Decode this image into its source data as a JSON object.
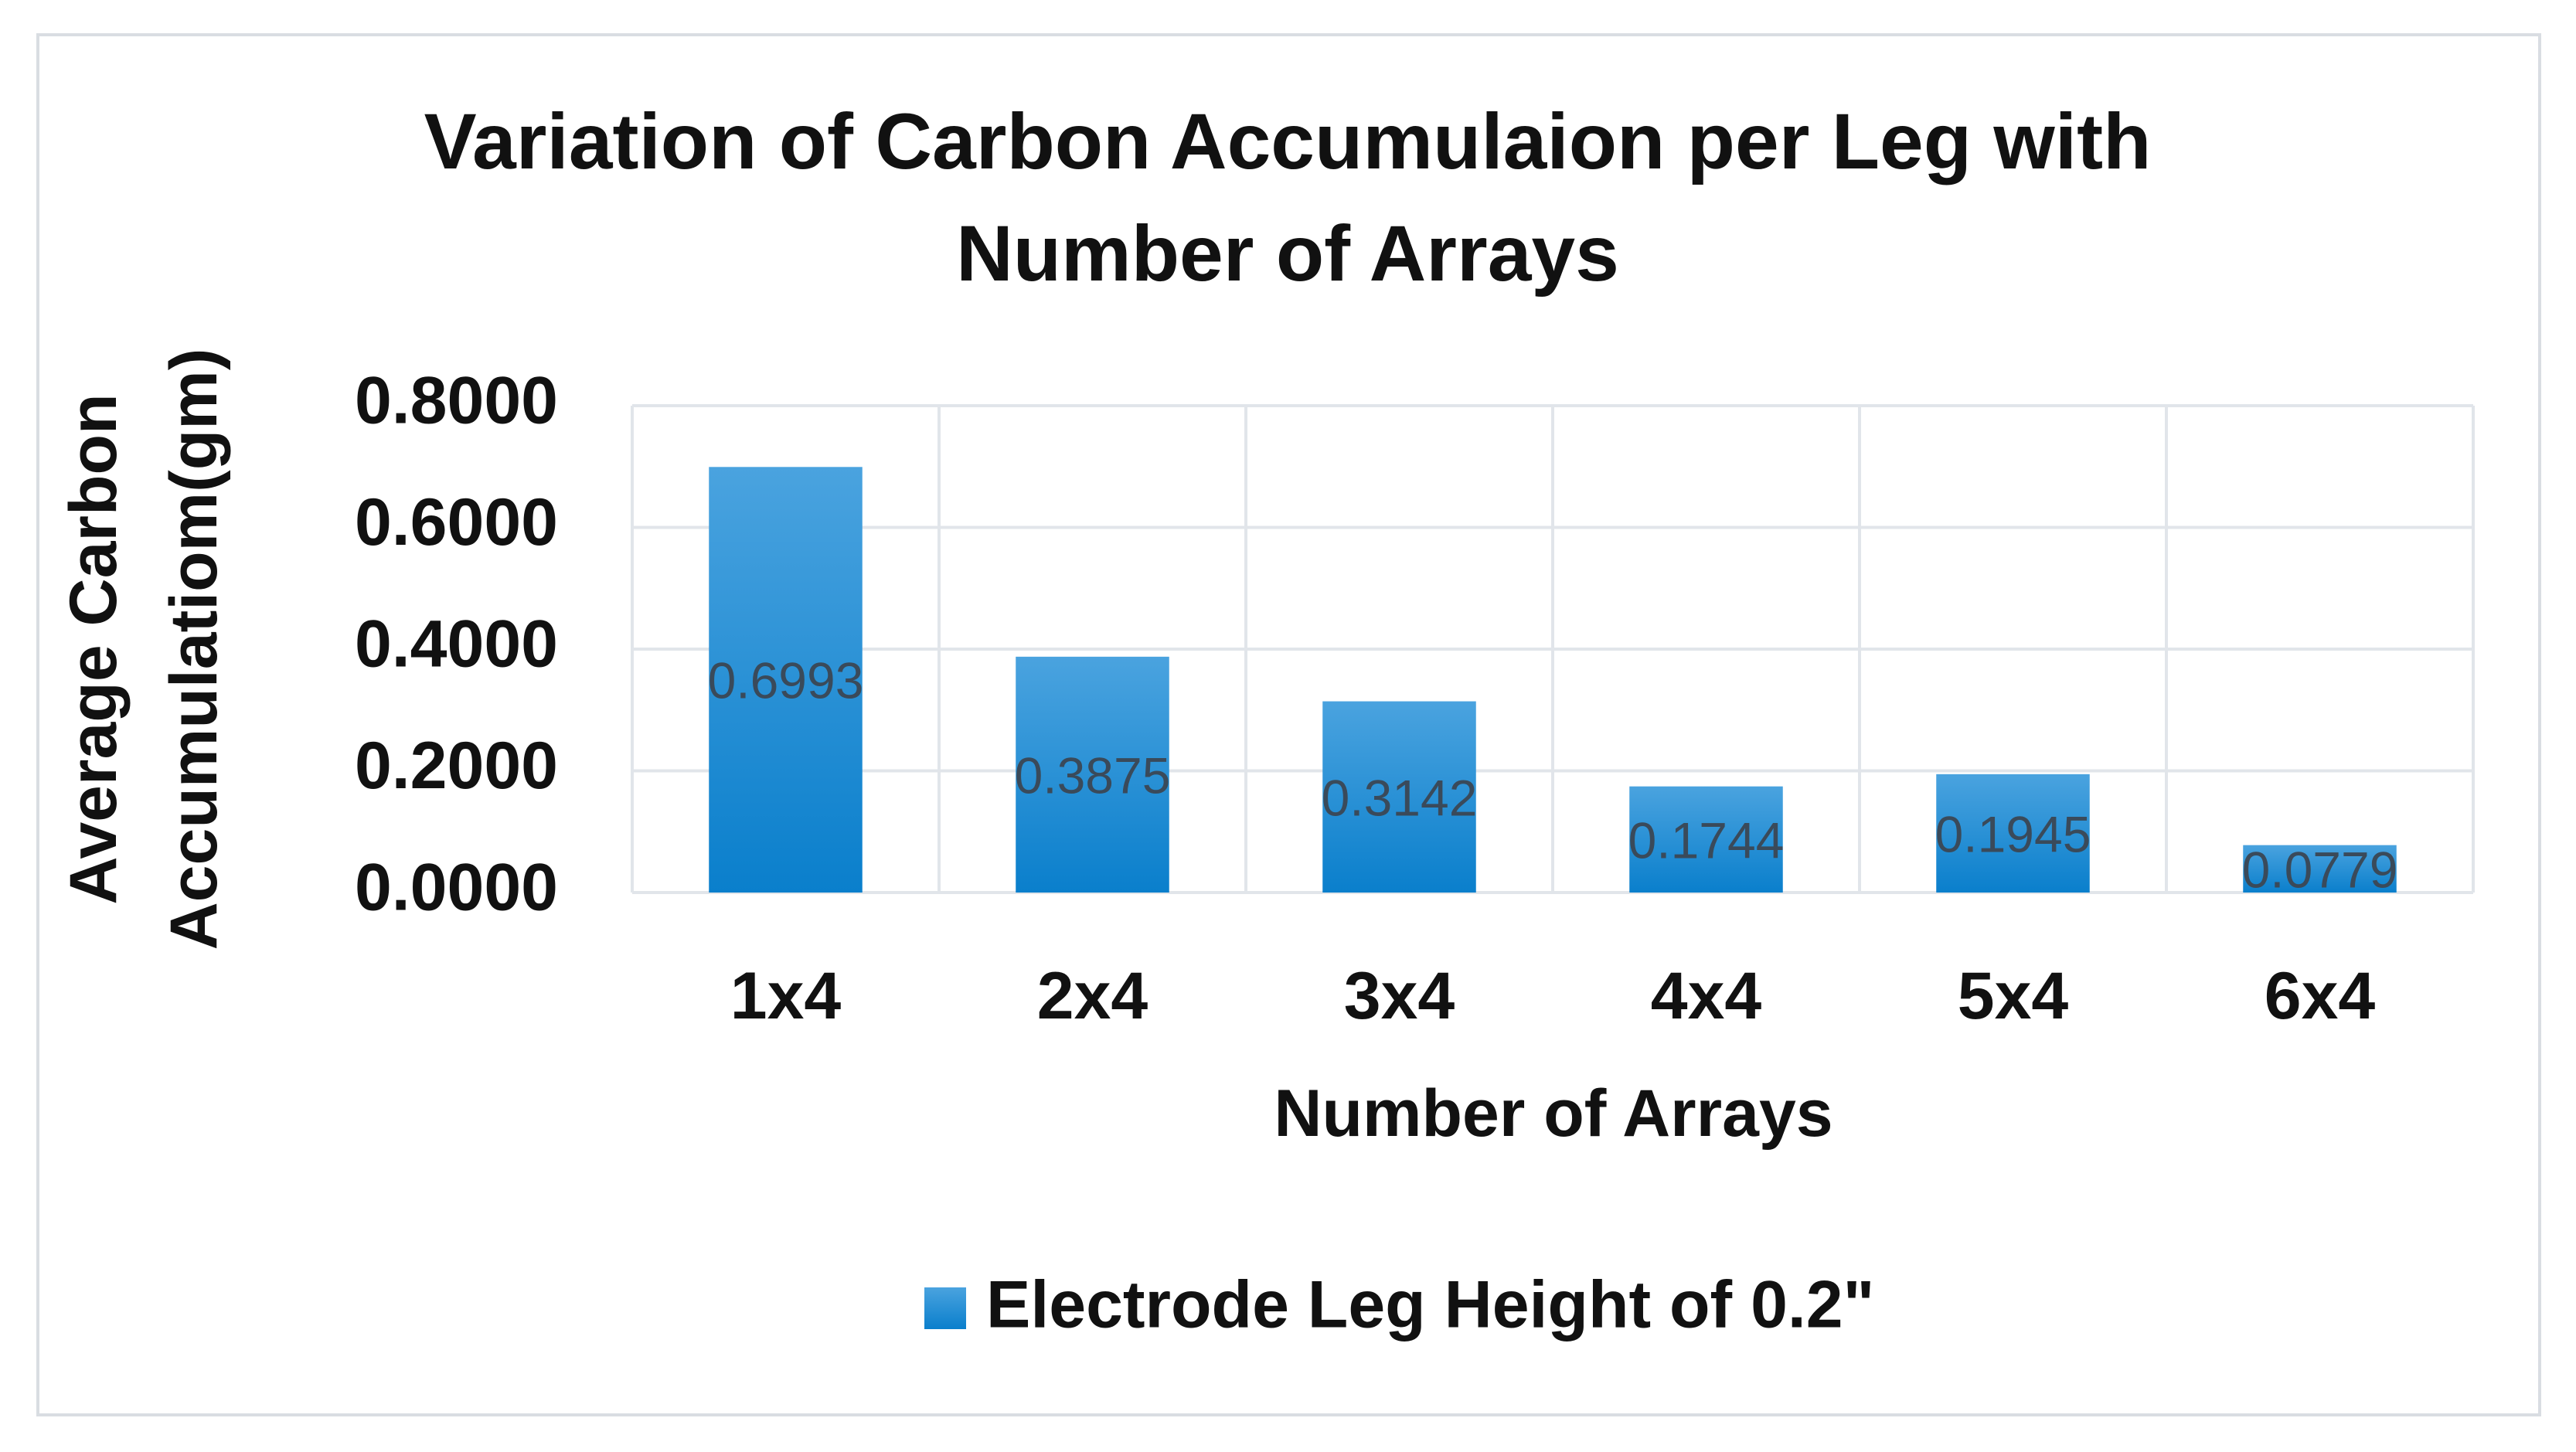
{
  "chart_data": {
    "type": "bar",
    "title_lines": [
      "Variation of Carbon Accumulaion per Leg with",
      "Number of Arrays"
    ],
    "xlabel": "Number of Arrays",
    "ylabel_lines": [
      "Average Carbon",
      "Accumulatiom(gm)"
    ],
    "categories": [
      "1x4",
      "2x4",
      "3x4",
      "4x4",
      "5x4",
      "6x4"
    ],
    "series": [
      {
        "name": "Electrode Leg Height of 0.2\"",
        "values": [
          0.6993,
          0.3875,
          0.3142,
          0.1744,
          0.1945,
          0.0779
        ],
        "labels": [
          "0.6993",
          "0.3875",
          "0.3142",
          "0.1744",
          "0.1945",
          "0.0779"
        ]
      }
    ],
    "yticks": [
      "0.0000",
      "0.2000",
      "0.4000",
      "0.6000",
      "0.8000"
    ],
    "ylim": [
      0,
      0.8
    ],
    "grid": true,
    "legend_position": "bottom",
    "colors": {
      "bar_top": "#4aa3df",
      "bar_bottom": "#0a7fcc",
      "grid": "#e1e5ea"
    }
  }
}
